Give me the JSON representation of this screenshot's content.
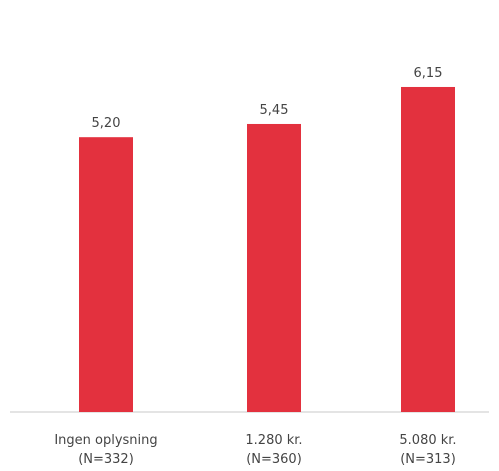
{
  "chart_data": {
    "type": "bar",
    "categories": [
      {
        "line1": "Ingen oplysning",
        "line2": "(N=332)"
      },
      {
        "line1": "1.280 kr.",
        "line2": "(N=360)"
      },
      {
        "line1": "5.080 kr.",
        "line2": "(N=313)"
      }
    ],
    "values": [
      5.2,
      5.45,
      6.15
    ],
    "value_labels": [
      "5,20",
      "5,45",
      "6,15"
    ],
    "ylim": [
      0,
      7.02
    ],
    "grid": false,
    "bar_color": "#e3313e",
    "axis_line_color": "#c8c8c8",
    "label_color": "#444444"
  }
}
